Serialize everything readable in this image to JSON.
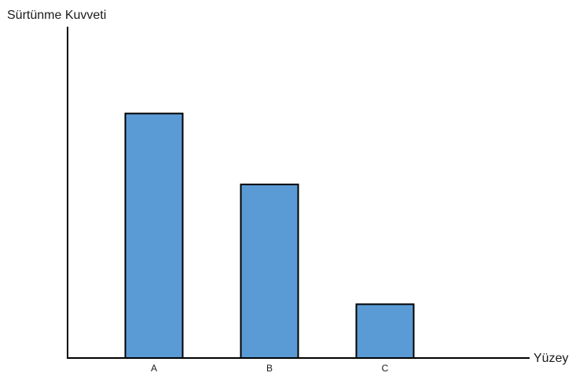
{
  "chart_data": {
    "type": "bar",
    "title": "",
    "xlabel": "Yüzey",
    "ylabel": "Sürtünme Kuvveti",
    "categories": [
      "A",
      "B",
      "C"
    ],
    "values": [
      100,
      71,
      22
    ],
    "ylim": [
      0,
      131
    ],
    "grid": false,
    "y_ticks_shown": false,
    "colors": {
      "bar_fill": "#5b9bd5",
      "bar_stroke": "#000000",
      "axis": "#000000"
    }
  }
}
